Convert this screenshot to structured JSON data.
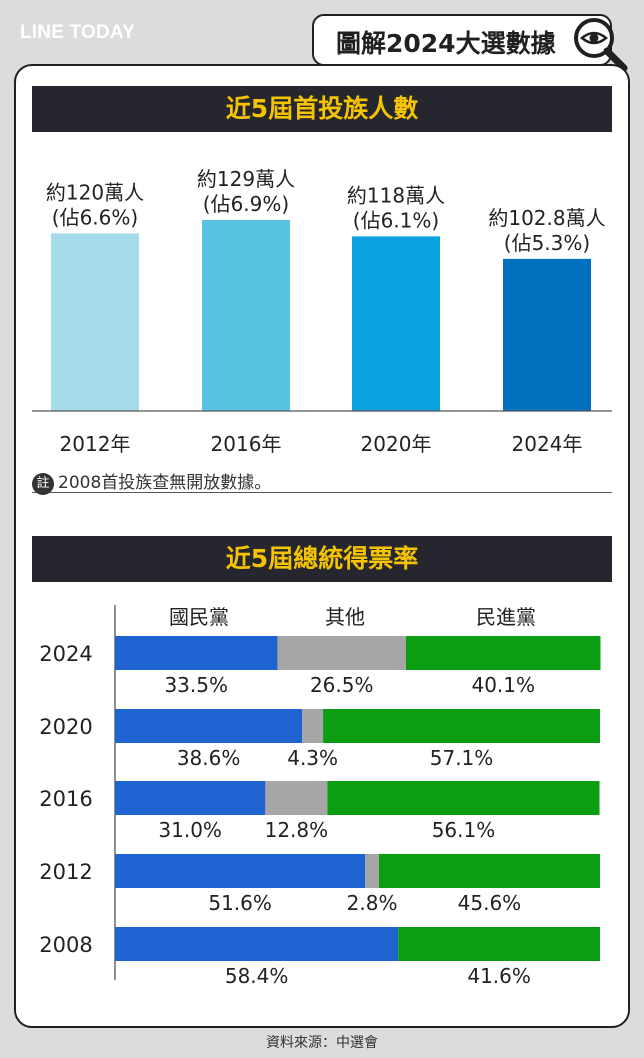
{
  "header": {
    "brand": "LINE TODAY",
    "headline": "圖解2024大選數據",
    "icon": "magnifier-eye-icon"
  },
  "section1": {
    "title": "近5屆首投族人數"
  },
  "section2": {
    "title": "近5屆總統得票率"
  },
  "note": {
    "badge": "註",
    "text": "2008首投族查無開放數據。"
  },
  "footer": {
    "source": "資料來源：中選會"
  },
  "colors": {
    "dark_bar": "#26262f",
    "title_yellow": "#f5c400",
    "kmt": "#1f63d1",
    "other": "#a6a6a6",
    "dpp": "#0b9e12"
  },
  "chart_data": [
    {
      "type": "bar",
      "categories": [
        "2012年",
        "2016年",
        "2020年",
        "2024年"
      ],
      "values": [
        120,
        129,
        118,
        102.8
      ],
      "labels": [
        [
          "約120萬人",
          "(佔6.6%)"
        ],
        [
          "約129萬人",
          "(佔6.9%)"
        ],
        [
          "約118萬人",
          "(佔6.1%)"
        ],
        [
          "約102.8萬人",
          "(佔5.3%)"
        ]
      ],
      "share_percent": [
        6.6,
        6.9,
        6.1,
        5.3
      ],
      "bar_colors": [
        "#a6dcea",
        "#58c2e2",
        "#0ba2df",
        "#0370bd"
      ]
    },
    {
      "type": "bar",
      "orientation": "horizontal-stacked",
      "categories": [
        "2024",
        "2020",
        "2016",
        "2012",
        "2008"
      ],
      "series": [
        {
          "name": "國民黨",
          "color": "#1f63d1",
          "values": [
            33.5,
            38.6,
            31.0,
            51.6,
            58.4
          ],
          "labels": [
            "33.5%",
            "38.6%",
            "31.0%",
            "51.6%",
            "58.4%"
          ]
        },
        {
          "name": "其他",
          "color": "#a6a6a6",
          "values": [
            26.5,
            4.3,
            12.8,
            2.8,
            0
          ],
          "labels": [
            "26.5%",
            "4.3%",
            "12.8%",
            "2.8%",
            ""
          ]
        },
        {
          "name": "民進黨",
          "color": "#0b9e12",
          "values": [
            40.1,
            57.1,
            56.1,
            45.6,
            41.6
          ],
          "labels": [
            "40.1%",
            "57.1%",
            "56.1%",
            "45.6%",
            "41.6%"
          ]
        }
      ]
    }
  ]
}
